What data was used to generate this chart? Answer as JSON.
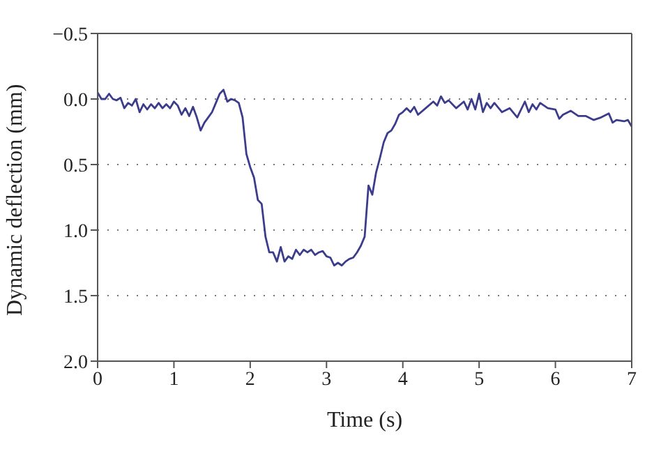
{
  "chart_data": {
    "type": "line",
    "xlabel": "Time (s)",
    "ylabel": "Dynamic deflection (mm)",
    "xlim": [
      0,
      7
    ],
    "xticks": [
      0,
      1,
      2,
      3,
      4,
      5,
      6,
      7
    ],
    "ylim": [
      2.0,
      -0.5
    ],
    "yticks": [
      {
        "value": -0.5,
        "label": "−0.5"
      },
      {
        "value": 0,
        "label": "0.0"
      },
      {
        "value": 0.5,
        "label": "0.5"
      },
      {
        "value": 1,
        "label": "1.0"
      },
      {
        "value": 1.5,
        "label": "1.5"
      },
      {
        "value": 2,
        "label": "2.0"
      }
    ],
    "grid": "y",
    "marker": "none",
    "line_style": "solid",
    "series": [
      {
        "color": "#3c3c8c",
        "x": [
          0,
          0.05,
          0.1,
          0.15,
          0.2,
          0.25,
          0.3,
          0.35,
          0.4,
          0.45,
          0.5,
          0.55,
          0.6,
          0.65,
          0.7,
          0.75,
          0.8,
          0.85,
          0.9,
          0.95,
          1.0,
          1.05,
          1.1,
          1.15,
          1.2,
          1.25,
          1.3,
          1.35,
          1.4,
          1.45,
          1.5,
          1.55,
          1.6,
          1.65,
          1.7,
          1.75,
          1.8,
          1.85,
          1.9,
          1.95,
          2.0,
          2.05,
          2.1,
          2.15,
          2.2,
          2.25,
          2.3,
          2.35,
          2.4,
          2.45,
          2.5,
          2.55,
          2.6,
          2.65,
          2.7,
          2.75,
          2.8,
          2.85,
          2.9,
          2.95,
          3.0,
          3.05,
          3.1,
          3.15,
          3.2,
          3.25,
          3.3,
          3.35,
          3.4,
          3.45,
          3.5,
          3.55,
          3.6,
          3.65,
          3.7,
          3.75,
          3.8,
          3.85,
          3.9,
          3.95,
          4.0,
          4.05,
          4.1,
          4.15,
          4.2,
          4.3,
          4.4,
          4.45,
          4.5,
          4.55,
          4.6,
          4.7,
          4.8,
          4.85,
          4.9,
          4.95,
          5.0,
          5.05,
          5.1,
          5.15,
          5.2,
          5.3,
          5.4,
          5.5,
          5.6,
          5.65,
          5.7,
          5.75,
          5.8,
          5.9,
          6.0,
          6.05,
          6.1,
          6.2,
          6.3,
          6.4,
          6.5,
          6.6,
          6.7,
          6.75,
          6.8,
          6.9,
          6.95,
          7.0
        ],
        "values": [
          -0.05,
          0.0,
          0.0,
          -0.04,
          0.0,
          0.01,
          -0.01,
          0.07,
          0.03,
          0.05,
          0.0,
          0.1,
          0.04,
          0.08,
          0.04,
          0.07,
          0.03,
          0.07,
          0.04,
          0.07,
          0.02,
          0.05,
          0.12,
          0.07,
          0.13,
          0.06,
          0.14,
          0.24,
          0.18,
          0.14,
          0.1,
          0.03,
          -0.04,
          -0.07,
          0.02,
          0.0,
          0.01,
          0.03,
          0.14,
          0.42,
          0.52,
          0.6,
          0.77,
          0.8,
          1.05,
          1.17,
          1.17,
          1.24,
          1.13,
          1.24,
          1.2,
          1.22,
          1.15,
          1.19,
          1.15,
          1.17,
          1.15,
          1.19,
          1.17,
          1.16,
          1.2,
          1.21,
          1.27,
          1.25,
          1.27,
          1.24,
          1.22,
          1.21,
          1.17,
          1.12,
          1.05,
          0.66,
          0.73,
          0.56,
          0.45,
          0.33,
          0.26,
          0.24,
          0.19,
          0.12,
          0.1,
          0.07,
          0.1,
          0.06,
          0.12,
          0.07,
          0.02,
          0.05,
          -0.02,
          0.03,
          0.01,
          0.07,
          0.02,
          0.08,
          0.0,
          0.08,
          -0.04,
          0.1,
          0.03,
          0.07,
          0.03,
          0.1,
          0.07,
          0.14,
          0.02,
          0.1,
          0.04,
          0.08,
          0.03,
          0.07,
          0.08,
          0.15,
          0.12,
          0.09,
          0.13,
          0.13,
          0.16,
          0.14,
          0.11,
          0.18,
          0.16,
          0.17,
          0.16,
          0.21
        ]
      }
    ]
  }
}
